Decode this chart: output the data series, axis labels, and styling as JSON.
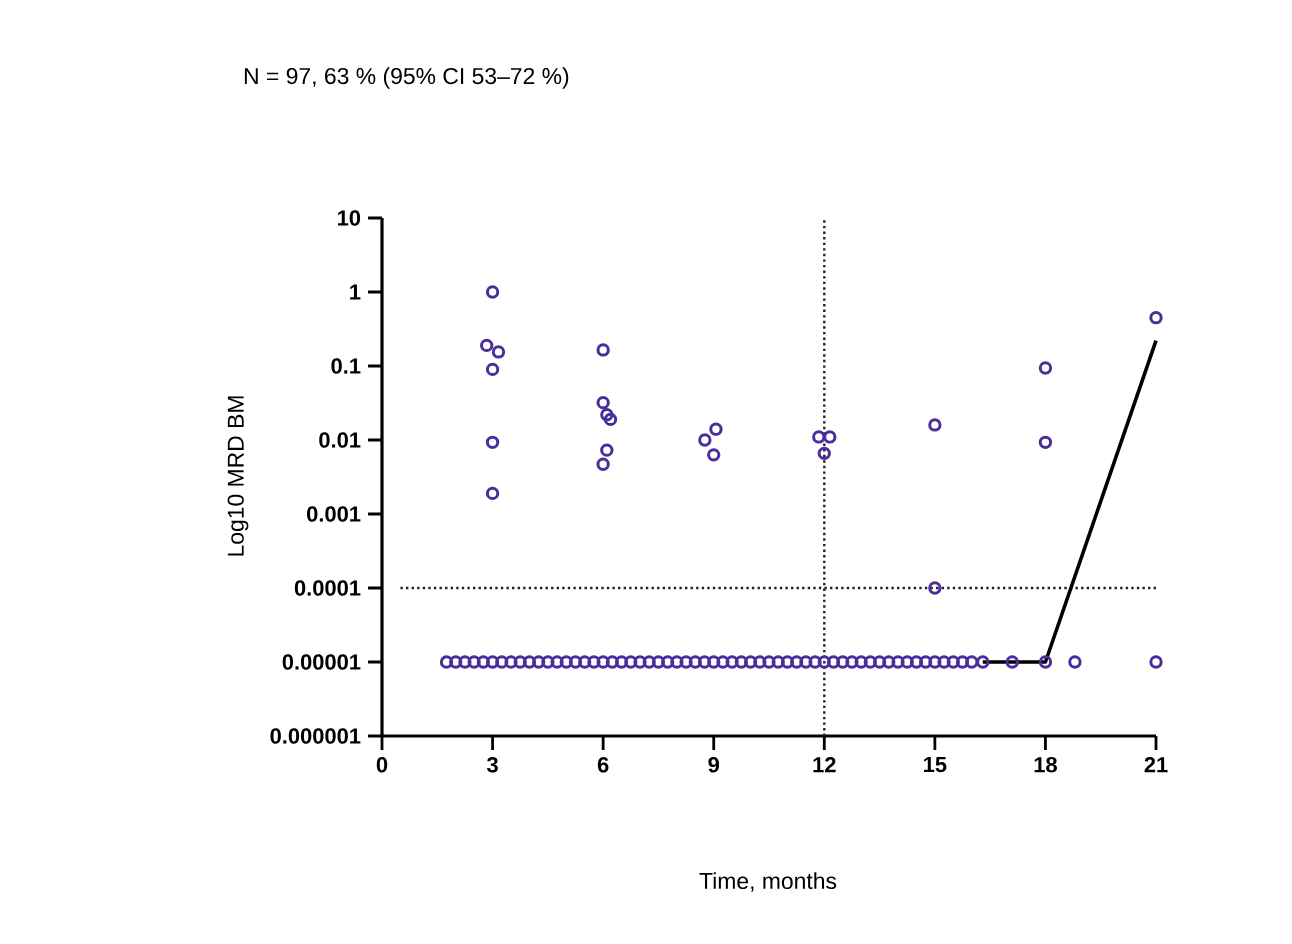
{
  "chart_data": {
    "type": "scatter",
    "title": "N = 97, 63 % (95% CI 53–72 %)",
    "xlabel": "Time, months",
    "ylabel": "Log10 MRD BM",
    "log": "y",
    "marker": "circle",
    "xlim": [
      0,
      21
    ],
    "xticks": [
      0,
      3,
      6,
      9,
      12,
      15,
      18,
      21
    ],
    "ylim": [
      1e-06,
      10
    ],
    "yticks": [
      {
        "value": 1e-06,
        "label": "0.000001"
      },
      {
        "value": 1e-05,
        "label": "0.00001"
      },
      {
        "value": 0.0001,
        "label": "0.0001"
      },
      {
        "value": 0.001,
        "label": "0.001"
      },
      {
        "value": 0.01,
        "label": "0.01"
      },
      {
        "value": 0.1,
        "label": "0.1"
      },
      {
        "value": 1,
        "label": "1"
      },
      {
        "value": 10,
        "label": "10"
      }
    ],
    "ref_lines": [
      {
        "axis": "y",
        "value": 0.0001,
        "color": "#222222",
        "line_style": "dotted"
      },
      {
        "axis": "x",
        "value": 12,
        "color": "#222222",
        "line_style": "dotted"
      }
    ],
    "series": [
      {
        "color": "#4a2e9c",
        "x": [
          3,
          2.84,
          3.16,
          3,
          3,
          3,
          6,
          6,
          6.1,
          6.2,
          6.1,
          6,
          9.06,
          8.76,
          9,
          11.85,
          12.15,
          12,
          15,
          15,
          18,
          18,
          21,
          1.75,
          2,
          2.25,
          2.5,
          2.75,
          3,
          3.25,
          3.5,
          3.75,
          4,
          4.25,
          4.5,
          4.75,
          5,
          5.25,
          5.5,
          5.75,
          6,
          6.25,
          6.5,
          6.75,
          7,
          7.25,
          7.5,
          7.75,
          8,
          8.25,
          8.5,
          8.75,
          9,
          9.25,
          9.5,
          9.75,
          10,
          10.25,
          10.5,
          10.75,
          11,
          11.25,
          11.5,
          11.75,
          12,
          12.25,
          12.5,
          12.75,
          13,
          13.25,
          13.5,
          13.75,
          14,
          14.25,
          14.5,
          14.75,
          15,
          15.25,
          15.5,
          15.75,
          16,
          16.3,
          17.1,
          18,
          18.8,
          21
        ],
        "values": [
          1,
          0.19,
          0.155,
          0.09,
          0.0093,
          0.0019,
          0.165,
          0.032,
          0.022,
          0.019,
          0.0073,
          0.0047,
          0.014,
          0.01,
          0.0063,
          0.011,
          0.011,
          0.0066,
          0.016,
          0.0001,
          0.094,
          0.0093,
          0.45,
          1e-05,
          1e-05,
          1e-05,
          1e-05,
          1e-05,
          1e-05,
          1e-05,
          1e-05,
          1e-05,
          1e-05,
          1e-05,
          1e-05,
          1e-05,
          1e-05,
          1e-05,
          1e-05,
          1e-05,
          1e-05,
          1e-05,
          1e-05,
          1e-05,
          1e-05,
          1e-05,
          1e-05,
          1e-05,
          1e-05,
          1e-05,
          1e-05,
          1e-05,
          1e-05,
          1e-05,
          1e-05,
          1e-05,
          1e-05,
          1e-05,
          1e-05,
          1e-05,
          1e-05,
          1e-05,
          1e-05,
          1e-05,
          1e-05,
          1e-05,
          1e-05,
          1e-05,
          1e-05,
          1e-05,
          1e-05,
          1e-05,
          1e-05,
          1e-05,
          1e-05,
          1e-05,
          1e-05,
          1e-05,
          1e-05,
          1e-05,
          1e-05,
          1e-05,
          1e-05,
          1e-05,
          1e-05,
          1e-05
        ]
      },
      {
        "type": "line",
        "marker": "none",
        "color": "#000000",
        "x": [
          16.3,
          18,
          21
        ],
        "values": [
          1e-05,
          1e-05,
          0.22
        ]
      }
    ]
  }
}
